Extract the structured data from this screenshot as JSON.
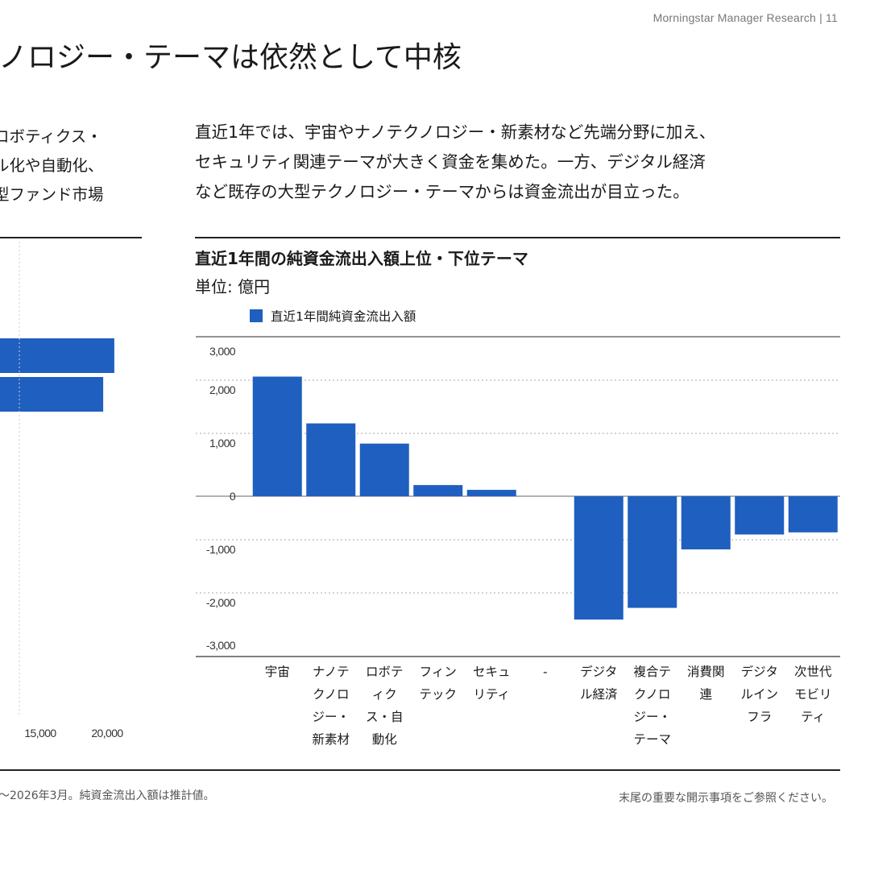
{
  "header": {
    "brand": "Morningstar Manager Research | 11"
  },
  "page": {
    "title": "ノロジー・テーマは依然として中核"
  },
  "left_text": {
    "lines": [
      "ロボティクス・",
      "ル化や自動化、",
      "型ファンド市場"
    ]
  },
  "right_text": {
    "lines": [
      "直近1年では、宇宙やナノテクノロジー・新素材など先端分野に加え、",
      "セキュリティ関連テーマが大きく資金を集めた。一方、デジタル経済",
      "など既存の大型テクノロジー・テーマからは資金流出が目立った。"
    ]
  },
  "left_chart": {
    "bars": [
      {
        "value": 20300
      },
      {
        "value": 19700
      }
    ],
    "x_ticks": [
      "15,000",
      "20,000"
    ]
  },
  "chart": {
    "title": "直近1年間の純資金流出入額上位・下位テーマ",
    "unit": "単位: 億円",
    "legend_label": "直近1年間純資金流出入額"
  },
  "chart_data": {
    "type": "bar",
    "title": "直近1年間の純資金流出入額上位・下位テーマ",
    "ylabel": "単位: 億円",
    "ylim": [
      -3000,
      3000
    ],
    "yticks": [
      3000,
      2000,
      1000,
      0,
      -1000,
      -2000,
      -3000
    ],
    "ytick_labels": [
      "3,000",
      "2,000",
      "1,000",
      "0",
      "-1,000",
      "-2,000",
      "-3,000"
    ],
    "color": "#1f5fbf",
    "series": [
      {
        "name": "直近1年間純資金流出入額",
        "values": [
          2250,
          1370,
          990,
          210,
          120,
          null,
          -2320,
          -2100,
          -1000,
          -720,
          -680
        ]
      }
    ],
    "categories": [
      [
        "宇宙"
      ],
      [
        "ナノテ",
        "クノロ",
        "ジー・",
        "新素材"
      ],
      [
        "ロボテ",
        "ィク",
        "ス・自",
        "動化"
      ],
      [
        "フィン",
        "テック"
      ],
      [
        "セキュ",
        "リティ"
      ],
      [
        "-"
      ],
      [
        "デジタ",
        "ル経済"
      ],
      [
        "複合テ",
        "クノロ",
        "ジー・",
        "テーマ"
      ],
      [
        "消費関",
        "連"
      ],
      [
        "デジタ",
        "ルイン",
        "フラ"
      ],
      [
        "次世代",
        "モビリ",
        "ティ"
      ]
    ]
  },
  "footer": {
    "note": "〜2026年3月。純資金流出入額は推計値。",
    "disclaimer": "末尾の重要な開示事項をご参照ください。"
  }
}
